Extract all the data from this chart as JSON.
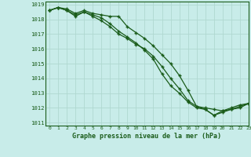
{
  "title": "Graphe pression niveau de la mer (hPa)",
  "background_color": "#c8ece9",
  "grid_color": "#b0d8d0",
  "line_color": "#1a5c1a",
  "xlim": [
    -0.5,
    23
  ],
  "ylim": [
    1010.8,
    1019.2
  ],
  "xticks": [
    0,
    1,
    2,
    3,
    4,
    5,
    6,
    7,
    8,
    9,
    10,
    11,
    12,
    13,
    14,
    15,
    16,
    17,
    18,
    19,
    20,
    21,
    22,
    23
  ],
  "yticks": [
    1011,
    1012,
    1013,
    1014,
    1015,
    1016,
    1017,
    1018,
    1019
  ],
  "series": [
    [
      1018.6,
      1018.8,
      1018.7,
      1018.4,
      1018.6,
      1018.4,
      1018.3,
      1018.2,
      1018.2,
      1017.5,
      1017.1,
      1016.7,
      1016.2,
      1015.6,
      1015.0,
      1014.2,
      1013.2,
      1012.1,
      1012.0,
      1011.9,
      1011.8,
      1012.0,
      1012.2,
      1012.3
    ],
    [
      1018.6,
      1018.8,
      1018.6,
      1018.3,
      1018.5,
      1018.3,
      1018.1,
      1017.7,
      1017.2,
      1016.8,
      1016.4,
      1015.9,
      1015.3,
      1014.3,
      1013.5,
      1013.0,
      1012.4,
      1012.0,
      1011.9,
      1011.5,
      1011.8,
      1011.9,
      1012.0,
      1012.3
    ],
    [
      1018.6,
      1018.8,
      1018.6,
      1018.2,
      1018.5,
      1018.2,
      1017.9,
      1017.5,
      1017.0,
      1016.7,
      1016.3,
      1016.0,
      1015.5,
      1014.8,
      1014.0,
      1013.3,
      1012.5,
      1012.1,
      1011.9,
      1011.5,
      1011.7,
      1011.9,
      1012.1,
      1012.3
    ]
  ]
}
